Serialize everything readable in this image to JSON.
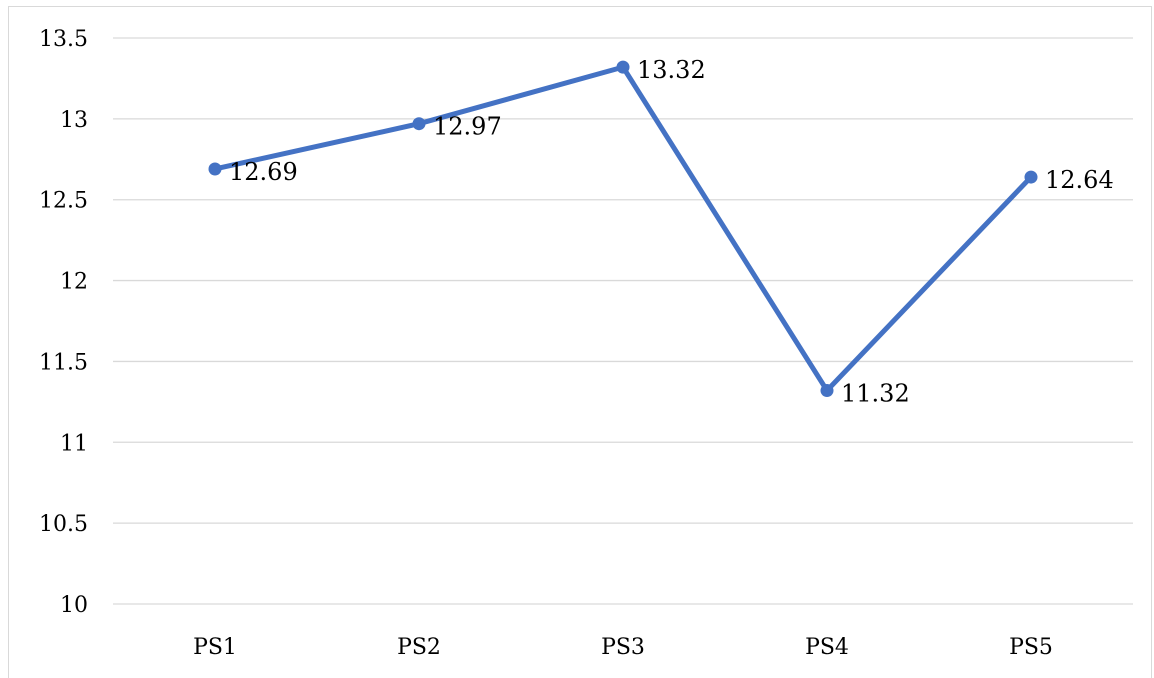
{
  "chart_data": {
    "type": "line",
    "categories": [
      "PS1",
      "PS2",
      "PS3",
      "PS4",
      "PS5"
    ],
    "series": [
      {
        "values": [
          12.69,
          12.97,
          13.32,
          11.32,
          12.64
        ]
      }
    ],
    "data_labels": [
      "12.69",
      "12.97",
      "13.32",
      "11.32",
      "12.64"
    ],
    "y_ticks": [
      10,
      10.5,
      11,
      11.5,
      12,
      12.5,
      13,
      13.5
    ],
    "y_tick_labels": [
      "10",
      "10.5",
      "11",
      "11.5",
      "12",
      "12.5",
      "13",
      "13.5"
    ],
    "ylim": [
      10,
      13.5
    ],
    "grid": true,
    "legend": "none",
    "title": "",
    "xlabel": "",
    "ylabel": ""
  },
  "colors": {
    "series_line": "#4472c4",
    "gridline": "#d9d9d9"
  }
}
